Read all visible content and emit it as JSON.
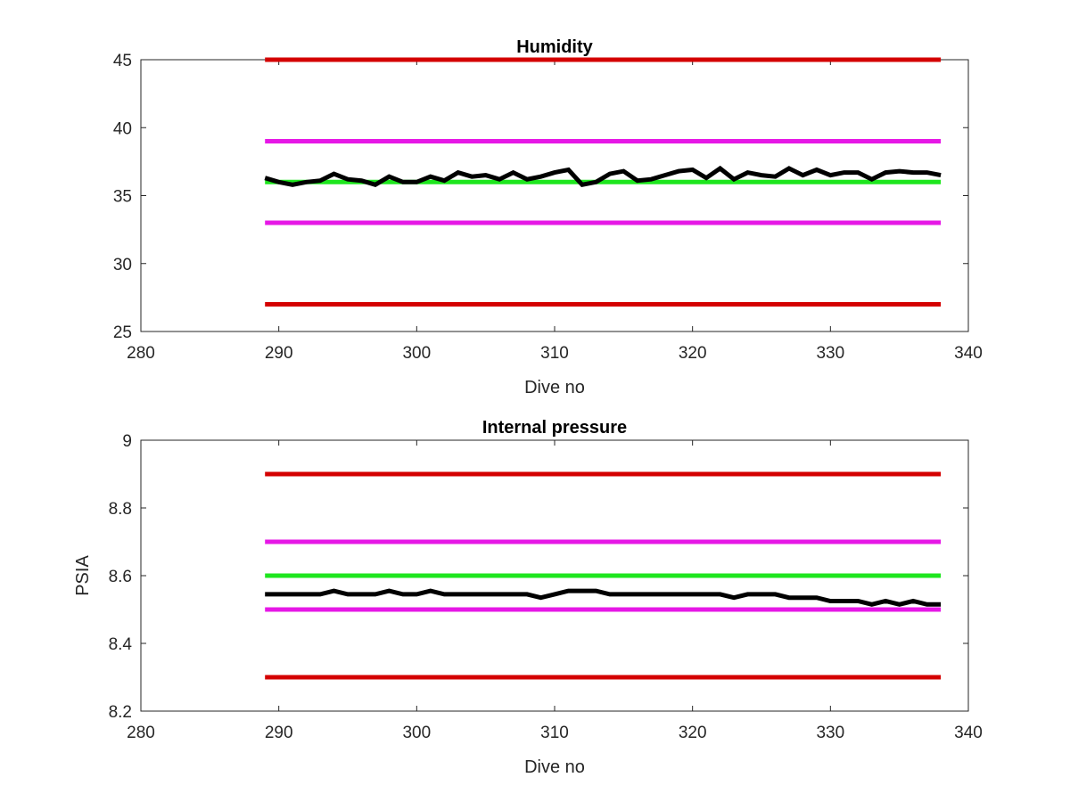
{
  "chart_data": [
    {
      "type": "line",
      "title": "Humidity",
      "xlabel": "Dive no",
      "ylabel": "",
      "xlim": [
        280,
        340
      ],
      "ylim": [
        25,
        45
      ],
      "xticks": [
        "280",
        "290",
        "300",
        "310",
        "320",
        "330",
        "340"
      ],
      "yticks": [
        "25",
        "30",
        "35",
        "40",
        "45"
      ],
      "grid": false,
      "legend": "none",
      "series": [
        {
          "color": "#d40000",
          "x": [
            289,
            338
          ],
          "values": [
            45,
            45
          ]
        },
        {
          "color": "#e617e6",
          "x": [
            289,
            338
          ],
          "values": [
            39,
            39
          ]
        },
        {
          "color": "#1ee61e",
          "x": [
            289,
            338
          ],
          "values": [
            36,
            36
          ]
        },
        {
          "color": "#e617e6",
          "x": [
            289,
            338
          ],
          "values": [
            33,
            33
          ]
        },
        {
          "color": "#d40000",
          "x": [
            289,
            338
          ],
          "values": [
            27,
            27
          ]
        },
        {
          "color": "#000000",
          "x": [
            289,
            290,
            291,
            292,
            293,
            294,
            295,
            296,
            297,
            298,
            299,
            300,
            301,
            302,
            303,
            304,
            305,
            306,
            307,
            308,
            309,
            310,
            311,
            312,
            313,
            314,
            315,
            316,
            317,
            318,
            319,
            320,
            321,
            322,
            323,
            324,
            325,
            326,
            327,
            328,
            329,
            330,
            331,
            332,
            333,
            334,
            335,
            336,
            337,
            338
          ],
          "values": [
            36.3,
            36.0,
            35.8,
            36.0,
            36.1,
            36.6,
            36.2,
            36.1,
            35.8,
            36.4,
            36.0,
            36.0,
            36.4,
            36.1,
            36.7,
            36.4,
            36.5,
            36.2,
            36.7,
            36.2,
            36.4,
            36.7,
            36.9,
            35.8,
            36.0,
            36.6,
            36.8,
            36.1,
            36.2,
            36.5,
            36.8,
            36.9,
            36.3,
            37.0,
            36.2,
            36.7,
            36.5,
            36.4,
            37.0,
            36.5,
            36.9,
            36.5,
            36.7,
            36.7,
            36.2,
            36.7,
            36.8,
            36.7,
            36.7,
            36.5
          ]
        }
      ]
    },
    {
      "type": "line",
      "title": "Internal pressure",
      "xlabel": "Dive no",
      "ylabel": "PSIA",
      "xlim": [
        280,
        340
      ],
      "ylim": [
        8.2,
        9
      ],
      "xticks": [
        "280",
        "290",
        "300",
        "310",
        "320",
        "330",
        "340"
      ],
      "yticks": [
        "8.2",
        "8.4",
        "8.6",
        "8.8",
        "9"
      ],
      "grid": false,
      "legend": "none",
      "series": [
        {
          "color": "#d40000",
          "x": [
            289,
            338
          ],
          "values": [
            8.9,
            8.9
          ]
        },
        {
          "color": "#e617e6",
          "x": [
            289,
            338
          ],
          "values": [
            8.7,
            8.7
          ]
        },
        {
          "color": "#1ee61e",
          "x": [
            289,
            338
          ],
          "values": [
            8.6,
            8.6
          ]
        },
        {
          "color": "#e617e6",
          "x": [
            289,
            338
          ],
          "values": [
            8.5,
            8.5
          ]
        },
        {
          "color": "#d40000",
          "x": [
            289,
            338
          ],
          "values": [
            8.3,
            8.3
          ]
        },
        {
          "color": "#000000",
          "x": [
            289,
            290,
            291,
            292,
            293,
            294,
            295,
            296,
            297,
            298,
            299,
            300,
            301,
            302,
            303,
            304,
            305,
            306,
            307,
            308,
            309,
            310,
            311,
            312,
            313,
            314,
            315,
            316,
            317,
            318,
            319,
            320,
            321,
            322,
            323,
            324,
            325,
            326,
            327,
            328,
            329,
            330,
            331,
            332,
            333,
            334,
            335,
            336,
            337,
            338
          ],
          "values": [
            8.545,
            8.545,
            8.545,
            8.545,
            8.545,
            8.555,
            8.545,
            8.545,
            8.545,
            8.555,
            8.545,
            8.545,
            8.555,
            8.545,
            8.545,
            8.545,
            8.545,
            8.545,
            8.545,
            8.545,
            8.535,
            8.545,
            8.555,
            8.555,
            8.555,
            8.545,
            8.545,
            8.545,
            8.545,
            8.545,
            8.545,
            8.545,
            8.545,
            8.545,
            8.535,
            8.545,
            8.545,
            8.545,
            8.535,
            8.535,
            8.535,
            8.525,
            8.525,
            8.525,
            8.515,
            8.525,
            8.515,
            8.525,
            8.515,
            8.515
          ]
        }
      ]
    }
  ]
}
